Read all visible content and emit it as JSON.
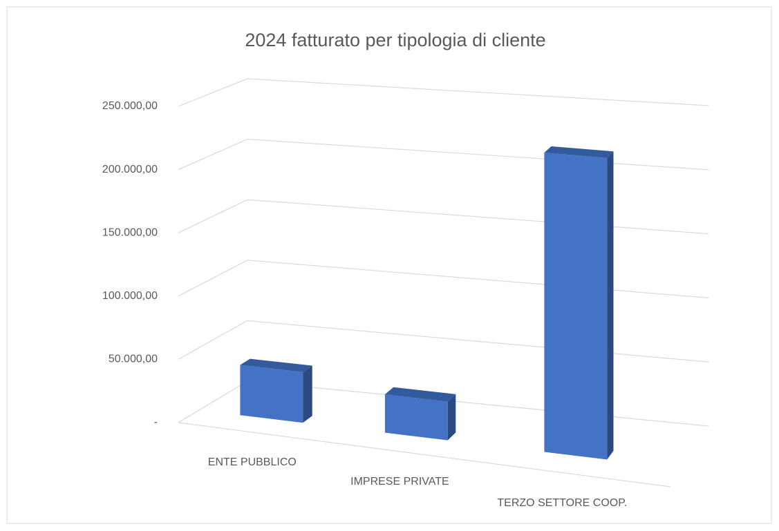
{
  "chart_data": {
    "type": "bar3d",
    "title": "2024  fatturato per tipologia  di cliente",
    "categories": [
      "ENTE PUBBLICO",
      "IMPRESE PRIVATE",
      "TERZO SETTORE COOP."
    ],
    "values": [
      40000,
      30000,
      230000
    ],
    "color": "#4472c4",
    "ylim": [
      0,
      250000
    ],
    "yticks": [
      {
        "value": 0,
        "label": "-"
      },
      {
        "value": 50000,
        "label": "50.000,00"
      },
      {
        "value": 100000,
        "label": "100.000,00"
      },
      {
        "value": 150000,
        "label": "150.000,00"
      },
      {
        "value": 200000,
        "label": "200.000,00"
      },
      {
        "value": 250000,
        "label": "250.000,00"
      }
    ],
    "grid": true
  }
}
